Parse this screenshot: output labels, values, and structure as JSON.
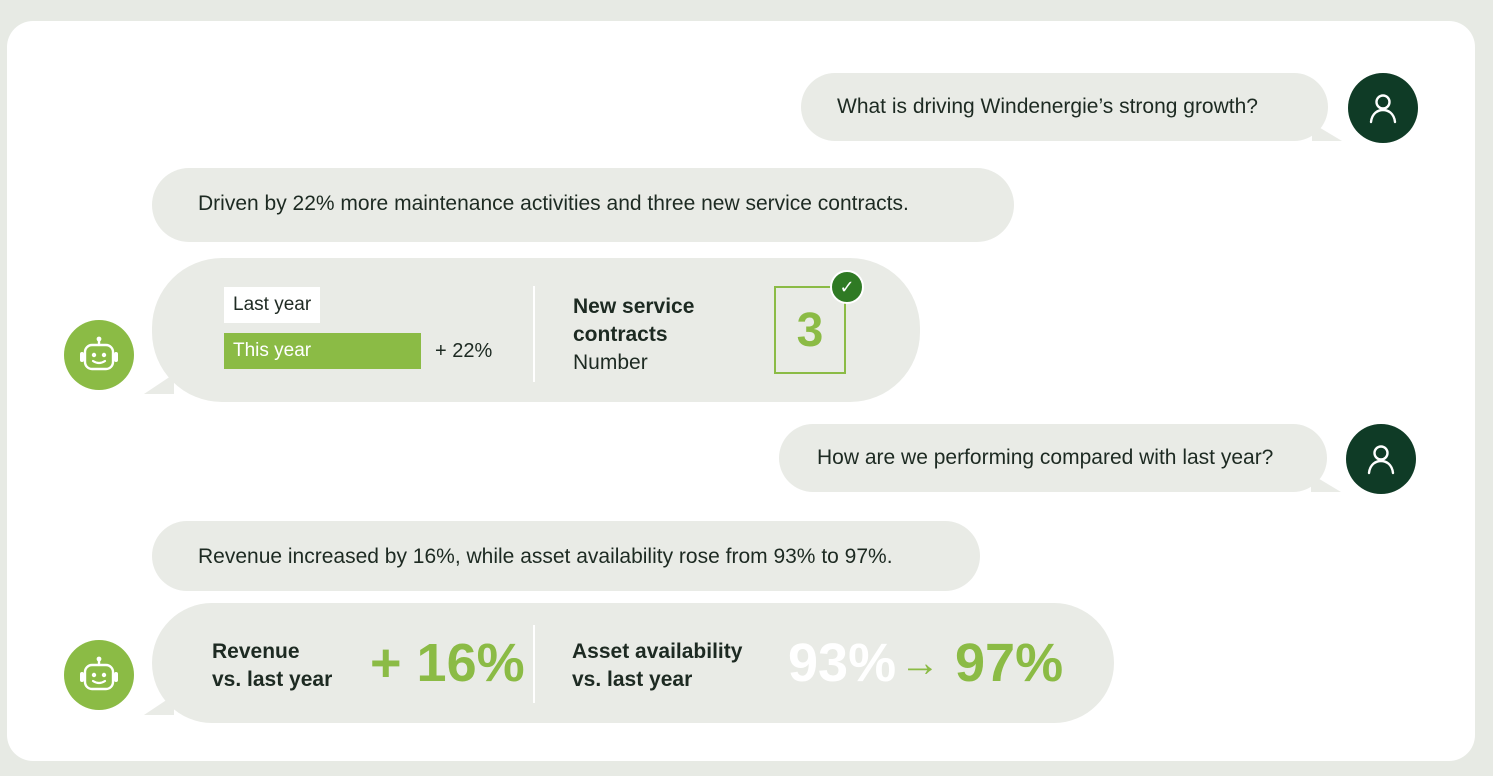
{
  "chat": {
    "q1": "What is driving Windenergie’s strong growth?",
    "a1": "Driven by 22% more maintenance activities and three new service contracts.",
    "card1": {
      "last_year_label": "Last year",
      "this_year_label": "This year",
      "delta": "+ 22%",
      "contracts_title_line1": "New service",
      "contracts_title_line2": "contracts",
      "contracts_unit": "Number",
      "contracts_value": "3",
      "this_year_share_of_width": 0.82
    },
    "q2": "How are we performing compared with last year?",
    "a2": "Revenue increased by 16%, while asset availability rose from 93% to 97%.",
    "card2": {
      "revenue_label_line1": "Revenue",
      "revenue_label_line2": "vs. last year",
      "revenue_delta": "+ 16%",
      "availability_label_line1": "Asset availability",
      "availability_label_line2": "vs. last year",
      "availability_from": "93%",
      "availability_arrow": "→",
      "availability_to": "97%"
    }
  },
  "icons": {
    "user": "user-icon",
    "bot": "robot-icon",
    "check": "check-icon"
  },
  "colors": {
    "accent_green": "#8bbb45",
    "dark_green": "#0f3b26",
    "bubble_gray": "#e9ebe6"
  }
}
